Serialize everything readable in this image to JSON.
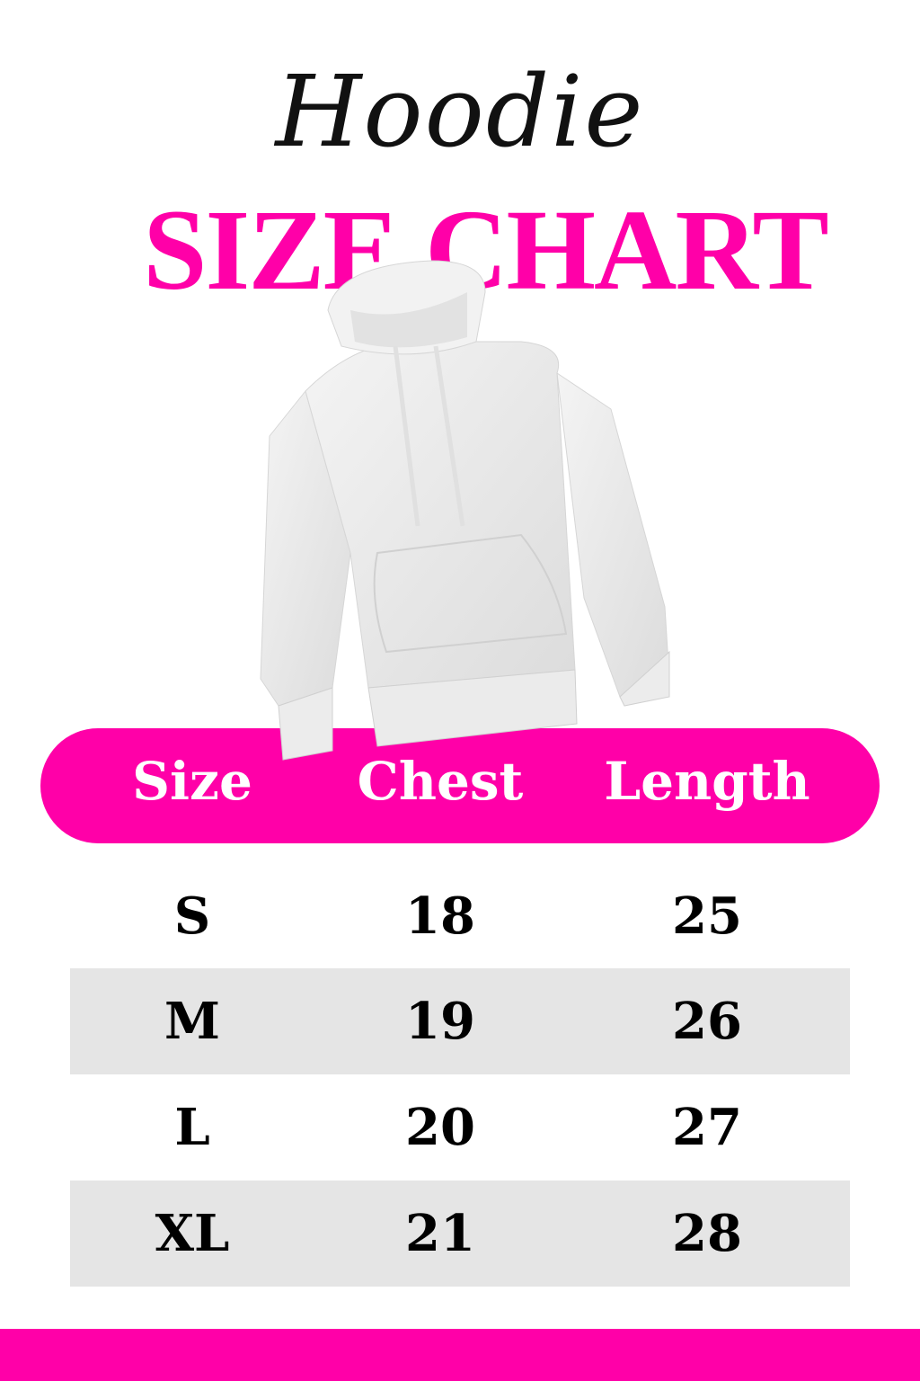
{
  "header": {
    "script_title": "Hoodie",
    "title": "SIZE CHART"
  },
  "colors": {
    "accent": "#ff00a8",
    "stripe": "#e5e5e5"
  },
  "image": {
    "subject": "white hoodie"
  },
  "table": {
    "columns": [
      "Size",
      "Chest",
      "Length"
    ],
    "rows": [
      [
        "S",
        "18",
        "25"
      ],
      [
        "M",
        "19",
        "26"
      ],
      [
        "L",
        "20",
        "27"
      ],
      [
        "XL",
        "21",
        "28"
      ]
    ]
  }
}
